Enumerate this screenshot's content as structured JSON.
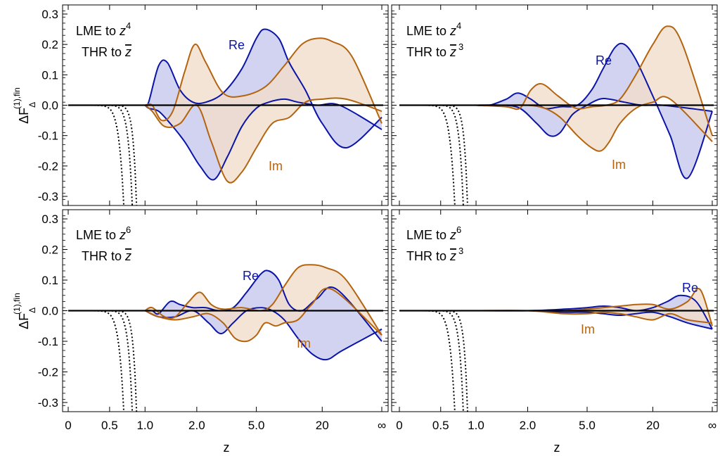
{
  "colors": {
    "re": "#0a14a8",
    "re_fill": "#c9cbef",
    "im": "#b4640f",
    "im_fill": "#f1ddcb",
    "overlap_fill": "#c9b2bf",
    "frame": "#000000"
  },
  "ylabel_top": "ΔF",
  "ylabel_top_sup": "(1),fin",
  "ylabel_top_sub": "Δ",
  "ylabel_bottom": "ΔF",
  "ylabel_bottom_sup": "(1),fin",
  "ylabel_bottom_sub": "Δ",
  "xlabel_left": "z",
  "xlabel_right": "z",
  "chart_data": [
    {
      "type": "area",
      "panel": "top-left",
      "lme": {
        "text": "LME to z",
        "exp": "4"
      },
      "thr": {
        "text": "THR to ",
        "var": "z",
        "exp": ""
      },
      "re_label": "Re",
      "im_label": "Im",
      "ylim": [
        -0.33,
        0.33
      ],
      "yticks": [
        "0.3",
        "0.2",
        "0.1",
        "0.0",
        "-0.1",
        "-0.2",
        "-0.3"
      ],
      "ytick_values": [
        0.3,
        0.2,
        0.1,
        0.0,
        -0.1,
        -0.2,
        -0.3
      ],
      "xticks": [
        "0",
        "0.5",
        "1.0",
        "2.0",
        "5.0",
        "20",
        "∞"
      ],
      "series": [
        {
          "name": "Re",
          "band": "upper",
          "x": [
            1.0,
            1.05,
            1.2,
            1.35,
            1.6,
            1.9,
            2.3,
            3.0,
            4.0,
            5.0,
            6.0,
            8.0,
            10.0,
            14.0,
            20.0,
            35.0,
            80.0
          ],
          "y": [
            0.0,
            0.01,
            0.13,
            0.14,
            0.05,
            0.01,
            0.01,
            0.04,
            0.12,
            0.22,
            0.25,
            0.22,
            0.14,
            0.05,
            -0.06,
            -0.14,
            -0.04
          ]
        },
        {
          "name": "Re",
          "band": "lower",
          "x": [
            1.0,
            1.05,
            1.2,
            1.4,
            1.7,
            2.1,
            2.6,
            3.2,
            4.0,
            5.0,
            6.5,
            9.0,
            12.0,
            18.0,
            30.0,
            80.0
          ],
          "y": [
            0.0,
            -0.01,
            -0.02,
            -0.06,
            -0.12,
            -0.2,
            -0.245,
            -0.17,
            -0.07,
            -0.01,
            0.01,
            0.02,
            0.01,
            0.0,
            0.0,
            -0.08
          ]
        },
        {
          "name": "Im",
          "band": "upper",
          "x": [
            1.0,
            1.1,
            1.25,
            1.45,
            1.7,
            1.95,
            2.3,
            3.0,
            4.0,
            6.0,
            9.0,
            13.0,
            18.0,
            25.0,
            40.0,
            80.0
          ],
          "y": [
            0.0,
            0.0,
            -0.05,
            -0.02,
            0.11,
            0.2,
            0.14,
            0.04,
            0.03,
            0.06,
            0.13,
            0.2,
            0.22,
            0.21,
            0.16,
            -0.06
          ]
        },
        {
          "name": "Im",
          "band": "lower",
          "x": [
            1.0,
            1.1,
            1.3,
            1.6,
            2.0,
            2.5,
            3.2,
            4.0,
            5.0,
            7.0,
            10.0,
            14.0,
            20.0,
            35.0,
            80.0
          ],
          "y": [
            0.0,
            -0.02,
            -0.07,
            -0.06,
            0.0,
            -0.12,
            -0.25,
            -0.22,
            -0.14,
            -0.06,
            -0.04,
            0.01,
            0.02,
            0.02,
            -0.02
          ]
        }
      ]
    },
    {
      "type": "area",
      "panel": "top-right",
      "lme": {
        "text": "LME to z",
        "exp": "4"
      },
      "thr": {
        "text": "THR to ",
        "var": "z",
        "exp": "3"
      },
      "re_label": "Re",
      "im_label": "Im",
      "ylim": [
        -0.33,
        0.33
      ],
      "xticks": [
        "0",
        "0.5",
        "1.0",
        "2.0",
        "5.0",
        "20",
        "∞"
      ],
      "series": [
        {
          "name": "Re",
          "band": "upper",
          "x": [
            1.0,
            1.2,
            1.5,
            1.75,
            2.1,
            2.6,
            3.3,
            4.3,
            5.5,
            7.0,
            9.0,
            11.0,
            14.0,
            20.0,
            30.0,
            45.0,
            80.0
          ],
          "y": [
            0.0,
            0.0,
            0.02,
            0.04,
            0.02,
            -0.01,
            -0.005,
            0.0,
            0.05,
            0.12,
            0.19,
            0.2,
            0.15,
            0.03,
            -0.1,
            -0.24,
            -0.02
          ]
        },
        {
          "name": "Re",
          "band": "lower",
          "x": [
            1.0,
            1.4,
            1.8,
            2.3,
            2.8,
            3.3,
            4.0,
            5.0,
            6.5,
            8.0,
            11.0,
            16.0,
            25.0,
            80.0
          ],
          "y": [
            0.0,
            0.0,
            -0.01,
            -0.06,
            -0.1,
            -0.09,
            -0.03,
            0.0,
            0.02,
            0.02,
            0.01,
            0.0,
            0.0,
            -0.02
          ]
        },
        {
          "name": "Im",
          "band": "upper",
          "x": [
            1.0,
            1.5,
            1.8,
            2.1,
            2.5,
            3.2,
            4.2,
            5.5,
            7.5,
            10.0,
            14.0,
            20.0,
            28.0,
            40.0,
            80.0
          ],
          "y": [
            0.0,
            -0.005,
            -0.01,
            0.05,
            0.07,
            0.03,
            -0.01,
            -0.005,
            0.0,
            0.02,
            0.1,
            0.2,
            0.26,
            0.2,
            -0.1
          ]
        },
        {
          "name": "Im",
          "band": "lower",
          "x": [
            1.0,
            1.5,
            2.0,
            2.6,
            3.3,
            4.3,
            5.5,
            6.7,
            8.0,
            10.0,
            14.0,
            20.0,
            30.0,
            80.0
          ],
          "y": [
            0.0,
            0.0,
            0.0,
            -0.01,
            -0.04,
            -0.1,
            -0.14,
            -0.15,
            -0.12,
            -0.06,
            -0.01,
            0.01,
            0.02,
            -0.12
          ]
        }
      ]
    },
    {
      "type": "area",
      "panel": "bottom-left",
      "lme": {
        "text": "LME to z",
        "exp": "6"
      },
      "thr": {
        "text": "THR to ",
        "var": "z",
        "exp": ""
      },
      "re_label": "Re",
      "im_label": "Im",
      "ylim": [
        -0.33,
        0.33
      ],
      "yticks": [
        "0.3",
        "0.2",
        "0.1",
        "0.0",
        "-0.1",
        "-0.2",
        "-0.3"
      ],
      "ytick_values": [
        0.3,
        0.2,
        0.1,
        0.0,
        -0.1,
        -0.2,
        -0.3
      ],
      "xticks": [
        "0",
        "0.5",
        "1.0",
        "2.0",
        "5.0",
        "20",
        "∞"
      ],
      "series": [
        {
          "name": "Re",
          "band": "upper",
          "x": [
            1.0,
            1.1,
            1.2,
            1.4,
            1.6,
            1.9,
            2.3,
            2.8,
            3.5,
            4.3,
            5.5,
            6.5,
            8.0,
            10.0,
            13.0,
            18.0,
            28.0,
            80.0
          ],
          "y": [
            0.0,
            0.0,
            -0.01,
            0.03,
            0.02,
            0.01,
            0.01,
            0.0,
            0.01,
            0.06,
            0.12,
            0.13,
            0.1,
            0.02,
            0.0,
            0.04,
            0.07,
            -0.1
          ]
        },
        {
          "name": "Re",
          "band": "lower",
          "x": [
            1.0,
            1.2,
            1.5,
            1.9,
            2.4,
            2.9,
            3.5,
            4.3,
            5.5,
            7.0,
            9.0,
            12.0,
            16.0,
            22.0,
            32.0,
            80.0
          ],
          "y": [
            0.0,
            -0.02,
            -0.02,
            0.0,
            -0.04,
            -0.075,
            -0.04,
            0.0,
            0.01,
            0.0,
            -0.03,
            -0.09,
            -0.14,
            -0.16,
            -0.13,
            -0.06
          ]
        },
        {
          "name": "Im",
          "band": "upper",
          "x": [
            1.0,
            1.1,
            1.3,
            1.5,
            1.8,
            2.1,
            2.5,
            3.0,
            4.0,
            5.5,
            7.0,
            9.0,
            12.0,
            16.0,
            22.0,
            35.0,
            80.0
          ],
          "y": [
            0.0,
            0.01,
            -0.02,
            -0.02,
            0.03,
            0.06,
            0.02,
            0.005,
            0.01,
            0.0,
            0.02,
            0.08,
            0.14,
            0.15,
            0.14,
            0.1,
            -0.08
          ]
        },
        {
          "name": "Im",
          "band": "lower",
          "x": [
            1.0,
            1.2,
            1.5,
            1.9,
            2.4,
            3.0,
            3.6,
            4.3,
            5.0,
            6.0,
            7.5,
            9.0,
            12.0,
            16.0,
            25.0,
            80.0
          ],
          "y": [
            0.0,
            -0.02,
            -0.03,
            -0.02,
            -0.01,
            -0.04,
            -0.09,
            -0.1,
            -0.08,
            -0.04,
            -0.05,
            -0.04,
            -0.03,
            0.02,
            0.07,
            -0.08
          ]
        }
      ]
    },
    {
      "type": "area",
      "panel": "bottom-right",
      "lme": {
        "text": "LME to z",
        "exp": "6"
      },
      "thr": {
        "text": "THR to ",
        "var": "z",
        "exp": "3"
      },
      "re_label": "Re",
      "im_label": "Im",
      "ylim": [
        -0.33,
        0.33
      ],
      "xticks": [
        "0",
        "0.5",
        "1.0",
        "2.0",
        "5.0",
        "20",
        "∞"
      ],
      "series": [
        {
          "name": "Re",
          "band": "upper",
          "x": [
            1.0,
            2.0,
            3.5,
            5.0,
            7.0,
            10.0,
            14.0,
            20.0,
            28.0,
            38.0,
            55.0,
            80.0
          ],
          "y": [
            0.0,
            0.0,
            0.005,
            0.01,
            0.015,
            0.01,
            0.0,
            0.01,
            0.03,
            0.05,
            0.03,
            -0.06
          ]
        },
        {
          "name": "Re",
          "band": "lower",
          "x": [
            1.0,
            2.0,
            3.5,
            5.0,
            7.0,
            10.0,
            14.0,
            20.0,
            30.0,
            45.0,
            80.0
          ],
          "y": [
            0.0,
            0.0,
            -0.005,
            -0.005,
            -0.01,
            -0.015,
            -0.01,
            -0.005,
            -0.02,
            -0.04,
            -0.06
          ]
        },
        {
          "name": "Im",
          "band": "upper",
          "x": [
            1.0,
            2.0,
            3.5,
            5.0,
            7.0,
            10.0,
            14.0,
            20.0,
            30.0,
            45.0,
            60.0,
            80.0
          ],
          "y": [
            0.0,
            0.0,
            0.0,
            0.005,
            0.01,
            0.015,
            0.02,
            0.02,
            0.005,
            0.03,
            0.07,
            -0.05
          ]
        },
        {
          "name": "Im",
          "band": "lower",
          "x": [
            1.0,
            2.0,
            3.5,
            5.0,
            7.0,
            10.0,
            14.0,
            20.0,
            30.0,
            45.0,
            80.0
          ],
          "y": [
            0.0,
            0.0,
            -0.01,
            -0.01,
            -0.005,
            -0.01,
            -0.02,
            -0.03,
            -0.01,
            -0.03,
            -0.04
          ]
        }
      ]
    }
  ]
}
